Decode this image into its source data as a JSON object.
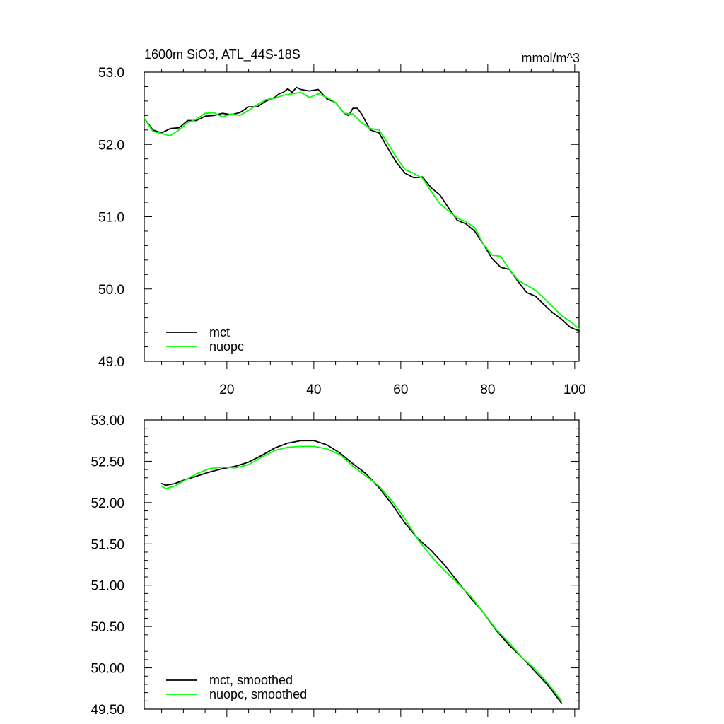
{
  "chart_data": [
    {
      "type": "line",
      "title": "1600m SiO3, ATL_44S-18S",
      "units": "mmol/m^3",
      "xlim": [
        1,
        101
      ],
      "ylim": [
        49.0,
        53.0
      ],
      "x_ticks": [
        20,
        40,
        60,
        80,
        100
      ],
      "x_tick_labels": [
        "20",
        "40",
        "60",
        "80",
        "100"
      ],
      "y_ticks": [
        49.0,
        50.0,
        51.0,
        52.0,
        53.0
      ],
      "y_tick_labels": [
        "49.0",
        "50.0",
        "51.0",
        "52.0",
        "53.0"
      ],
      "legend_position": "bottom-left",
      "grid": false,
      "series": [
        {
          "name": "mct",
          "color": "#000000",
          "x": [
            1,
            3,
            5,
            7,
            9,
            11,
            13,
            15,
            17,
            19,
            21,
            23,
            25,
            27,
            29,
            31,
            32,
            33,
            34,
            35,
            36,
            37,
            39,
            41,
            43,
            45,
            47,
            48,
            49,
            50,
            51,
            53,
            55,
            57,
            59,
            61,
            63,
            65,
            67,
            69,
            71,
            73,
            75,
            77,
            79,
            81,
            83,
            85,
            87,
            89,
            91,
            93,
            95,
            97,
            99,
            101
          ],
          "y": [
            52.36,
            52.2,
            52.16,
            52.22,
            52.23,
            52.33,
            52.33,
            52.39,
            52.4,
            52.43,
            52.41,
            52.44,
            52.52,
            52.52,
            52.6,
            52.65,
            52.7,
            52.72,
            52.77,
            52.72,
            52.79,
            52.76,
            52.74,
            52.76,
            52.63,
            52.58,
            52.43,
            52.4,
            52.5,
            52.5,
            52.42,
            52.2,
            52.16,
            51.95,
            51.75,
            51.6,
            51.54,
            51.55,
            51.4,
            51.3,
            51.12,
            50.95,
            50.9,
            50.8,
            50.62,
            50.42,
            50.3,
            50.27,
            50.1,
            49.95,
            49.9,
            49.78,
            49.67,
            49.58,
            49.47,
            49.42
          ]
        },
        {
          "name": "nuopc",
          "color": "#00ff00",
          "x": [
            1,
            3,
            5,
            7,
            9,
            11,
            13,
            15,
            17,
            19,
            21,
            23,
            25,
            27,
            29,
            31,
            33,
            35,
            37,
            39,
            41,
            43,
            45,
            47,
            49,
            51,
            53,
            55,
            57,
            59,
            61,
            63,
            65,
            67,
            69,
            71,
            73,
            75,
            77,
            79,
            81,
            83,
            85,
            87,
            89,
            91,
            93,
            95,
            97,
            99,
            101
          ],
          "y": [
            52.36,
            52.18,
            52.15,
            52.12,
            52.2,
            52.3,
            52.35,
            52.43,
            52.44,
            52.38,
            52.42,
            52.4,
            52.47,
            52.55,
            52.62,
            52.64,
            52.68,
            52.7,
            52.72,
            52.65,
            52.7,
            52.65,
            52.58,
            52.43,
            52.42,
            52.3,
            52.22,
            52.2,
            52.02,
            51.82,
            51.65,
            51.6,
            51.53,
            51.35,
            51.18,
            51.08,
            50.98,
            50.93,
            50.85,
            50.62,
            50.47,
            50.45,
            50.27,
            50.12,
            50.05,
            49.98,
            49.87,
            49.75,
            49.63,
            49.55,
            49.45
          ]
        }
      ]
    },
    {
      "type": "line",
      "xlim": [
        1,
        101
      ],
      "ylim": [
        49.5,
        53.0
      ],
      "x_ticks": [
        20,
        40,
        60,
        80,
        100
      ],
      "y_ticks": [
        49.5,
        50.0,
        50.5,
        51.0,
        51.5,
        52.0,
        52.5,
        53.0
      ],
      "y_tick_labels": [
        "49.50",
        "50.00",
        "50.50",
        "51.00",
        "51.50",
        "52.00",
        "52.50",
        "53.00"
      ],
      "legend_position": "bottom-left",
      "grid": false,
      "series": [
        {
          "name": "mct, smoothed",
          "color": "#000000",
          "x": [
            5,
            6,
            8,
            10,
            13,
            16,
            19,
            22,
            25,
            28,
            31,
            34,
            37,
            40,
            43,
            46,
            49,
            52,
            55,
            58,
            61,
            64,
            67,
            70,
            73,
            76,
            79,
            82,
            85,
            88,
            91,
            94,
            97
          ],
          "y": [
            52.23,
            52.21,
            52.23,
            52.27,
            52.32,
            52.37,
            52.41,
            52.44,
            52.49,
            52.57,
            52.66,
            52.72,
            52.75,
            52.75,
            52.7,
            52.6,
            52.47,
            52.35,
            52.18,
            51.98,
            51.75,
            51.56,
            51.42,
            51.25,
            51.05,
            50.85,
            50.67,
            50.45,
            50.27,
            50.12,
            49.95,
            49.78,
            49.57
          ]
        },
        {
          "name": "nuopc, smoothed",
          "color": "#00ff00",
          "x": [
            5,
            6,
            8,
            10,
            13,
            16,
            19,
            22,
            25,
            28,
            31,
            34,
            37,
            40,
            43,
            46,
            49,
            52,
            55,
            58,
            61,
            64,
            67,
            70,
            73,
            76,
            79,
            82,
            85,
            88,
            91,
            94,
            97
          ],
          "y": [
            52.2,
            52.17,
            52.2,
            52.26,
            52.35,
            52.41,
            52.43,
            52.42,
            52.46,
            52.55,
            52.63,
            52.67,
            52.68,
            52.68,
            52.65,
            52.58,
            52.44,
            52.32,
            52.2,
            52.02,
            51.8,
            51.55,
            51.35,
            51.18,
            51.03,
            50.87,
            50.67,
            50.46,
            50.3,
            50.12,
            49.98,
            49.8,
            49.6
          ]
        }
      ]
    }
  ]
}
